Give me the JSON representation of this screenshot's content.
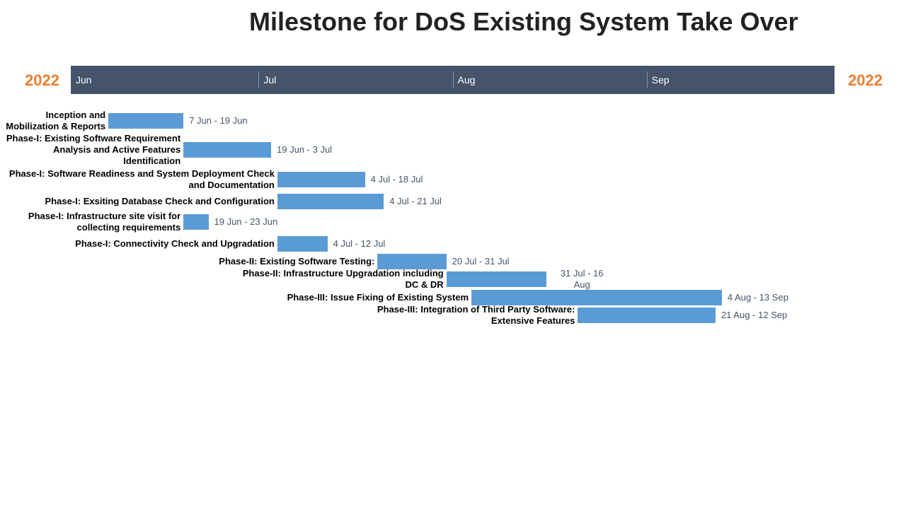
{
  "chart_data": {
    "type": "gantt",
    "title": "Milestone for DoS Existing System Take Over",
    "year_left": "2022",
    "year_right": "2022",
    "months": [
      "Jun",
      "Jul",
      "Aug",
      "Sep"
    ],
    "x_range": [
      "2022-06-01",
      "2022-09-30"
    ],
    "tasks": [
      {
        "name": "Inception and Mobilization & Reports",
        "start": "2022-06-07",
        "end": "2022-06-19",
        "date_label": "7 Jun - 19 Jun"
      },
      {
        "name": "Phase-I: Existing Software Requirement Analysis and Active Features Identification",
        "start": "2022-06-19",
        "end": "2022-07-03",
        "date_label": "19 Jun - 3 Jul"
      },
      {
        "name": "Phase-I: Software Readiness and System Deployment Check and Documentation",
        "start": "2022-07-04",
        "end": "2022-07-18",
        "date_label": "4 Jul - 18 Jul"
      },
      {
        "name": "Phase-I: Exsiting Database Check and Configuration",
        "start": "2022-07-04",
        "end": "2022-07-21",
        "date_label": "4 Jul - 21 Jul"
      },
      {
        "name": "Phase-I: Infrastructure site visit for collecting requirements",
        "start": "2022-06-19",
        "end": "2022-06-23",
        "date_label": "19 Jun - 23 Jun"
      },
      {
        "name": "Phase-I: Connectivity Check and Upgradation",
        "start": "2022-07-04",
        "end": "2022-07-12",
        "date_label": "4 Jul - 12 Jul"
      },
      {
        "name": "Phase-II: Existing Software Testing:",
        "start": "2022-07-20",
        "end": "2022-07-31",
        "date_label": "20 Jul - 31 Jul"
      },
      {
        "name": "Phase-II: Infrastructure Upgradation including DC & DR",
        "start": "2022-07-31",
        "end": "2022-08-16",
        "date_label": "31 Jul - 16 Aug"
      },
      {
        "name": "Phase-III: Issue Fixing of Existing System",
        "start": "2022-08-04",
        "end": "2022-09-13",
        "date_label": "4 Aug - 13 Sep"
      },
      {
        "name": "Phase-III: Integration of Third Party Software: Extensive Features",
        "start": "2022-08-21",
        "end": "2022-09-12",
        "date_label": "21 Aug - 12 Sep"
      }
    ],
    "colors": {
      "bar": "#5b9bd5",
      "band": "#45546b",
      "year": "#ed7d31",
      "title": "#222222",
      "date_text": "#45546b"
    }
  }
}
